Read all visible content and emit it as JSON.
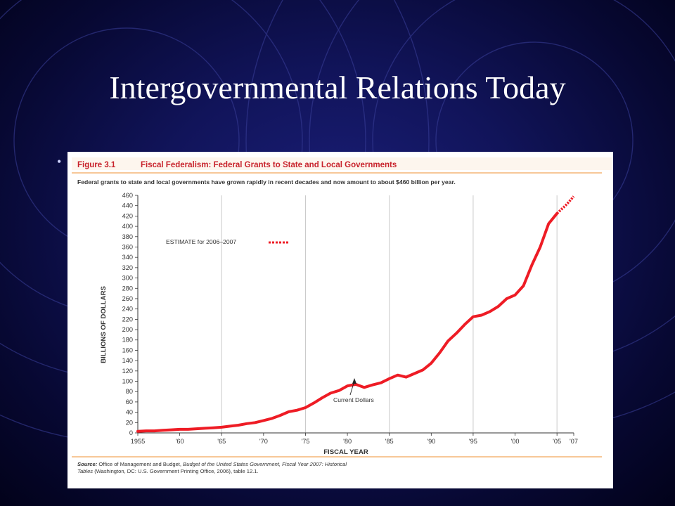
{
  "slide": {
    "title": "Intergovernmental Relations Today",
    "bullet_glyph": "•"
  },
  "colors": {
    "accent_red": "#ee1c25",
    "rule_orange": "#f2a65a",
    "heading_text": "#c8232c"
  },
  "figure": {
    "number": "Figure 3.1",
    "title": "Fiscal Federalism: Federal Grants to State and Local Governments",
    "caption": "Federal grants to state and local governments have grown rapidly in recent decades and now amount to about $460 billion per year.",
    "estimate_label": "ESTIMATE for 2006–2007",
    "series_label": "Current Dollars",
    "source_line1_lead": "Source:",
    "source_line1_rest": " Office of Management and Budget, ",
    "source_line1_italic": "Budget of the United States Government, Fiscal Year 2007: Historical",
    "source_line2_italic": "Tables",
    "source_line2_rest": " (Washington, DC: U.S. Government Printing Office, 2006), table 12.1."
  },
  "chart_data": {
    "type": "line",
    "xlabel": "FISCAL YEAR",
    "ylabel": "BILLIONS OF DOLLARS",
    "xlim": [
      1955,
      2007
    ],
    "ylim": [
      0,
      460
    ],
    "y_ticks": [
      0,
      20,
      40,
      60,
      80,
      100,
      120,
      140,
      160,
      180,
      200,
      220,
      240,
      260,
      280,
      300,
      320,
      340,
      360,
      380,
      400,
      420,
      440,
      460
    ],
    "x_ticks": [
      {
        "x": 1955,
        "label": "1955"
      },
      {
        "x": 1960,
        "label": "'60"
      },
      {
        "x": 1965,
        "label": "'65"
      },
      {
        "x": 1970,
        "label": "'70"
      },
      {
        "x": 1975,
        "label": "'75"
      },
      {
        "x": 1980,
        "label": "'80"
      },
      {
        "x": 1985,
        "label": "'85"
      },
      {
        "x": 1990,
        "label": "'90"
      },
      {
        "x": 1995,
        "label": "'95"
      },
      {
        "x": 2000,
        "label": "'00"
      },
      {
        "x": 2005,
        "label": "'05"
      },
      {
        "x": 2007,
        "label": "'07"
      }
    ],
    "gridlines_x": [
      1965,
      1975,
      1985,
      1995,
      2005
    ],
    "series": [
      {
        "name": "Current Dollars",
        "x": [
          1955,
          1956,
          1957,
          1958,
          1959,
          1960,
          1961,
          1962,
          1963,
          1964,
          1965,
          1966,
          1967,
          1968,
          1969,
          1970,
          1971,
          1972,
          1973,
          1974,
          1975,
          1976,
          1977,
          1978,
          1979,
          1980,
          1981,
          1982,
          1983,
          1984,
          1985,
          1986,
          1987,
          1988,
          1989,
          1990,
          1991,
          1992,
          1993,
          1994,
          1995,
          1996,
          1997,
          1998,
          1999,
          2000,
          2001,
          2002,
          2003,
          2004,
          2005
        ],
        "values": [
          3,
          4,
          4,
          5,
          6,
          7,
          7,
          8,
          9,
          10,
          11,
          13,
          15,
          18,
          20,
          24,
          28,
          34,
          41,
          44,
          49,
          58,
          68,
          77,
          82,
          91,
          94,
          88,
          93,
          97,
          105,
          112,
          108,
          115,
          122,
          135,
          155,
          178,
          193,
          210,
          225,
          228,
          235,
          245,
          260,
          267,
          285,
          325,
          360,
          405,
          425
        ]
      },
      {
        "name": "ESTIMATE for 2006–2007",
        "x": [
          2005,
          2006,
          2007
        ],
        "values": [
          425,
          440,
          458
        ]
      }
    ]
  }
}
